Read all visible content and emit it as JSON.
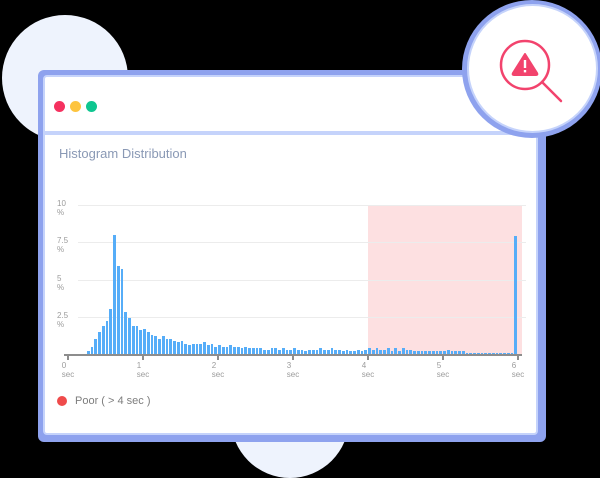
{
  "window": {
    "controls": [
      "close",
      "minimize",
      "maximize"
    ],
    "control_colors": {
      "close": "#f5315f",
      "minimize": "#fdc43f",
      "maximize": "#0ec690"
    }
  },
  "badge": {
    "icon": "warning-search-icon",
    "color": "#f2436d"
  },
  "chart": {
    "title": "Histogram Distribution"
  },
  "legend": {
    "items": [
      {
        "label": "Poor ( > 4 sec )",
        "color": "#ef4b4b"
      }
    ]
  },
  "chart_data": {
    "type": "bar",
    "title": "Histogram Distribution",
    "xlabel": "",
    "ylabel": "",
    "x_ticks": [
      "0 sec",
      "1 sec",
      "2 sec",
      "3 sec",
      "4 sec",
      "5 sec",
      "6 sec"
    ],
    "y_ticks": [
      "",
      "2.5 %",
      "5 %",
      "7.5 %",
      "10 %"
    ],
    "ylim": [
      0,
      10
    ],
    "xlim": [
      0,
      6
    ],
    "bin_width_sec": 0.05,
    "grid": true,
    "highlight_region": {
      "from": 4,
      "to": 6,
      "label": "Poor ( > 4 sec )",
      "color": "#fde0e1"
    },
    "bar_color": "#56adf8",
    "values": [
      0,
      0,
      0,
      0,
      0,
      0.2,
      0.5,
      1.0,
      1.5,
      1.9,
      2.2,
      3.0,
      8.0,
      5.9,
      5.7,
      2.8,
      2.4,
      1.9,
      1.9,
      1.6,
      1.7,
      1.5,
      1.3,
      1.2,
      1.0,
      1.2,
      1.0,
      1.0,
      0.9,
      0.8,
      0.9,
      0.7,
      0.6,
      0.7,
      0.7,
      0.7,
      0.8,
      0.6,
      0.7,
      0.5,
      0.6,
      0.5,
      0.5,
      0.6,
      0.5,
      0.5,
      0.4,
      0.5,
      0.4,
      0.4,
      0.4,
      0.4,
      0.3,
      0.3,
      0.4,
      0.4,
      0.3,
      0.4,
      0.3,
      0.3,
      0.4,
      0.3,
      0.3,
      0.2,
      0.3,
      0.3,
      0.3,
      0.4,
      0.3,
      0.3,
      0.4,
      0.3,
      0.3,
      0.2,
      0.3,
      0.2,
      0.2,
      0.3,
      0.2,
      0.3,
      0.4,
      0.3,
      0.4,
      0.3,
      0.3,
      0.4,
      0.2,
      0.4,
      0.2,
      0.4,
      0.3,
      0.3,
      0.2,
      0.2,
      0.2,
      0.2,
      0.2,
      0.2,
      0.2,
      0.2,
      0.2,
      0.3,
      0.2,
      0.2,
      0.2,
      0.2,
      0.1,
      0.1,
      0.1,
      0.1,
      0.1,
      0.1,
      0.1,
      0.1,
      0.1,
      0.1,
      0.1,
      0.1,
      0.1,
      7.9
    ]
  }
}
